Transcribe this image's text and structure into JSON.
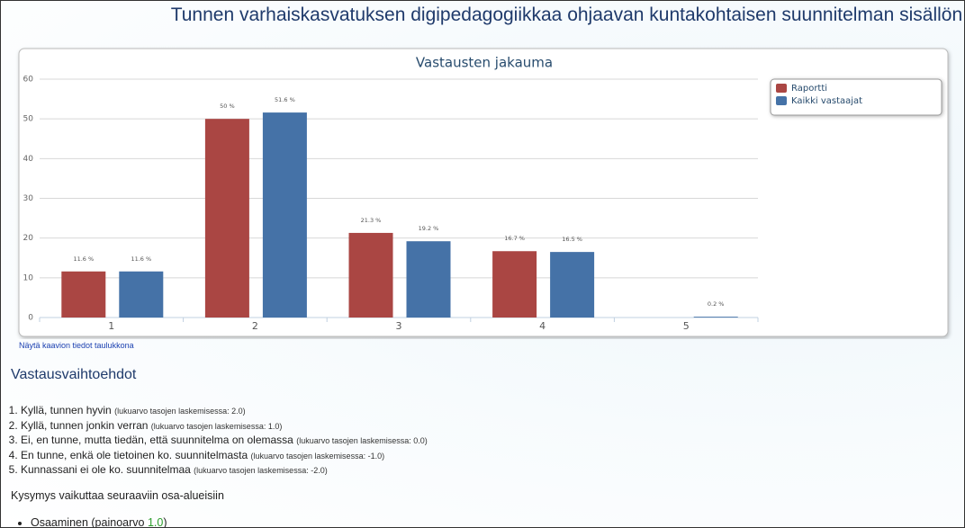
{
  "header": {
    "title": "Tunnen varhaiskasvatuksen digipedagogiikkaa ohjaavan kuntakohtaisen suunnitelman sisällön."
  },
  "chart_data": {
    "type": "bar",
    "title": "Vastausten jakauma",
    "categories": [
      "1",
      "2",
      "3",
      "4",
      "5"
    ],
    "series": [
      {
        "name": "Raportti",
        "color": "#aa4643",
        "values": [
          11.6,
          50,
          21.3,
          16.7,
          null
        ],
        "value_labels": [
          "11.6 %",
          "50 %",
          "21.3 %",
          "16.7 %",
          null
        ]
      },
      {
        "name": "Kaikki vastaajat",
        "color": "#4572a7",
        "values": [
          11.6,
          51.6,
          19.2,
          16.5,
          0.2
        ],
        "value_labels": [
          "11.6 %",
          "51.6 %",
          "19.2 %",
          "16.5 %",
          "0.2 %"
        ]
      }
    ],
    "ylim": [
      0,
      60
    ],
    "yticks": [
      0,
      10,
      20,
      30,
      40,
      50,
      60
    ],
    "grid": true,
    "legend": "top-right"
  },
  "table_link": "Näytä kaavion tiedot taulukkona",
  "options": {
    "heading": "Vastausvaihtoehdot",
    "items": [
      {
        "text": "Kyllä, tunnen hyvin",
        "note": "(lukuarvo tasojen laskemisessa: 2.0)"
      },
      {
        "text": "Kyllä, tunnen jonkin verran",
        "note": "(lukuarvo tasojen laskemisessa: 1.0)"
      },
      {
        "text": "Ei, en tunne, mutta tiedän, että suunnitelma on olemassa",
        "note": "(lukuarvo tasojen laskemisessa: 0.0)"
      },
      {
        "text": "En tunne, enkä ole tietoinen ko. suunnitelmasta",
        "note": "(lukuarvo tasojen laskemisessa: -1.0)"
      },
      {
        "text": "Kunnassani ei ole ko. suunnitelmaa",
        "note": "(lukuarvo tasojen laskemisessa: -2.0)"
      }
    ]
  },
  "areas": {
    "heading": "Kysymys vaikuttaa seuraaviin osa-alueisiin",
    "items": [
      {
        "text": "Osaaminen (painoarvo",
        "weight": "1.0",
        "tail": ")"
      }
    ]
  }
}
